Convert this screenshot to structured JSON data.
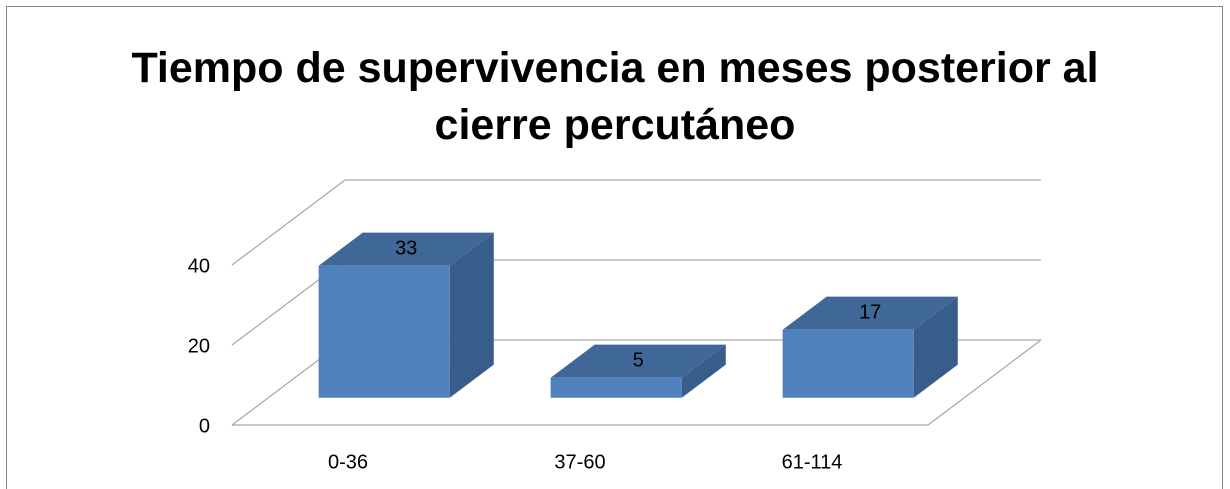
{
  "chart_data": {
    "type": "bar3d",
    "title": "Tiempo de supervivencia en meses posterior al cierre percutáneo",
    "categories": [
      "0-36",
      "37-60",
      "61-114"
    ],
    "values": [
      33,
      5,
      17
    ],
    "color": "#4f81bd",
    "ylim": [
      0,
      40
    ],
    "yticks": [
      0,
      20,
      40
    ],
    "grid": true
  }
}
